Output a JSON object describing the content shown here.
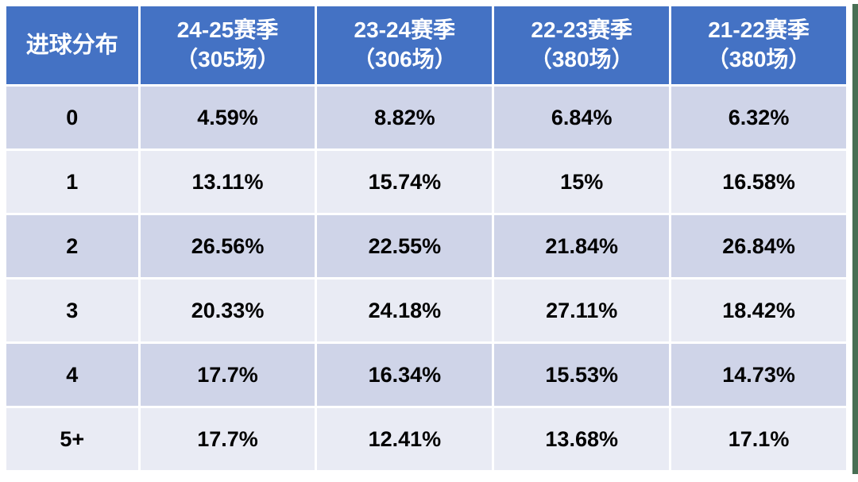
{
  "table": {
    "header": {
      "corner": "进球分布",
      "columns": [
        {
          "line1": "24-25赛季",
          "line2": "（305场）"
        },
        {
          "line1": "23-24赛季",
          "line2": "（306场）"
        },
        {
          "line1": "22-23赛季",
          "line2": "（380场）"
        },
        {
          "line1": "21-22赛季",
          "line2": "（380场）"
        }
      ]
    },
    "rows": [
      {
        "label": "0",
        "values": [
          "4.59%",
          "8.82%",
          "6.84%",
          "6.32%"
        ]
      },
      {
        "label": "1",
        "values": [
          "13.11%",
          "15.74%",
          "15%",
          "16.58%"
        ]
      },
      {
        "label": "2",
        "values": [
          "26.56%",
          "22.55%",
          "21.84%",
          "26.84%"
        ]
      },
      {
        "label": "3",
        "values": [
          "20.33%",
          "24.18%",
          "27.11%",
          "18.42%"
        ]
      },
      {
        "label": "4",
        "values": [
          "17.7%",
          "16.34%",
          "15.53%",
          "14.73%"
        ]
      },
      {
        "label": "5+",
        "values": [
          "17.7%",
          "12.41%",
          "13.68%",
          "17.1%"
        ]
      }
    ]
  },
  "colors": {
    "header_bg": "#4472C4",
    "header_text": "#FFFFFF",
    "row_band_dark": "#CFD4E8",
    "row_band_light": "#E9EBF4",
    "gridline": "#FFFFFF",
    "cell_text": "#000000",
    "right_edge_strip": "#486F54"
  },
  "chart_data": {
    "type": "table",
    "title": "进球分布",
    "categories": [
      "0",
      "1",
      "2",
      "3",
      "4",
      "5+"
    ],
    "series": [
      {
        "name": "24-25赛季（305场）",
        "values": [
          4.59,
          13.11,
          26.56,
          20.33,
          17.7,
          17.7
        ]
      },
      {
        "name": "23-24赛季（306场）",
        "values": [
          8.82,
          15.74,
          22.55,
          24.18,
          16.34,
          12.41
        ]
      },
      {
        "name": "22-23赛季（380场）",
        "values": [
          6.84,
          15,
          21.84,
          27.11,
          15.53,
          13.68
        ]
      },
      {
        "name": "21-22赛季（380场）",
        "values": [
          6.32,
          16.58,
          26.84,
          18.42,
          14.73,
          17.1
        ]
      }
    ],
    "unit": "%"
  }
}
